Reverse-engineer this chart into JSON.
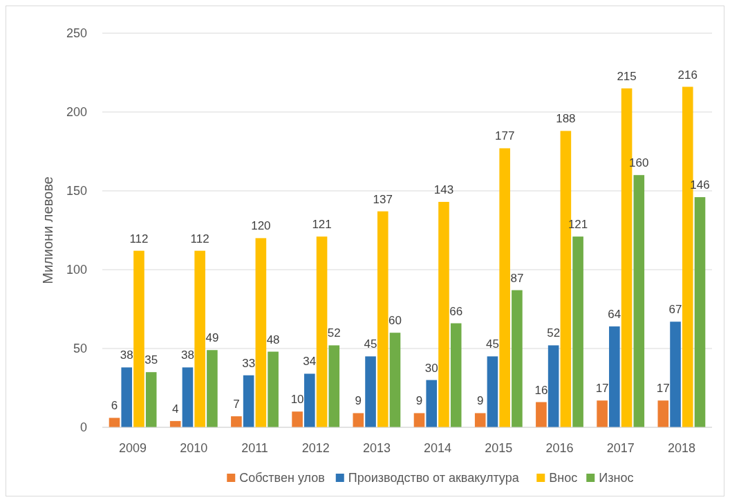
{
  "chart_data": {
    "type": "bar",
    "ylabel": "Милиони левове",
    "categories": [
      "2009",
      "2010",
      "2011",
      "2012",
      "2013",
      "2014",
      "2015",
      "2016",
      "2017",
      "2018"
    ],
    "series": [
      {
        "name": "Собствен улов",
        "color": "#ed7d31",
        "values": [
          6,
          4,
          7,
          10,
          9,
          9,
          9,
          16,
          17,
          17
        ]
      },
      {
        "name": "Производство от аквакултура",
        "color": "#2e75b6",
        "values": [
          38,
          38,
          33,
          34,
          45,
          30,
          45,
          52,
          64,
          67
        ]
      },
      {
        "name": "Внос",
        "color": "#ffc000",
        "values": [
          112,
          112,
          120,
          121,
          137,
          143,
          177,
          188,
          215,
          216
        ]
      },
      {
        "name": "Износ",
        "color": "#70ad47",
        "values": [
          35,
          49,
          48,
          52,
          60,
          66,
          87,
          121,
          160,
          146
        ]
      }
    ],
    "ylim": [
      0,
      250
    ],
    "yticks": [
      0,
      50,
      100,
      150,
      200,
      250
    ],
    "grid": "y",
    "legend": "bottom",
    "data_labels": true
  }
}
